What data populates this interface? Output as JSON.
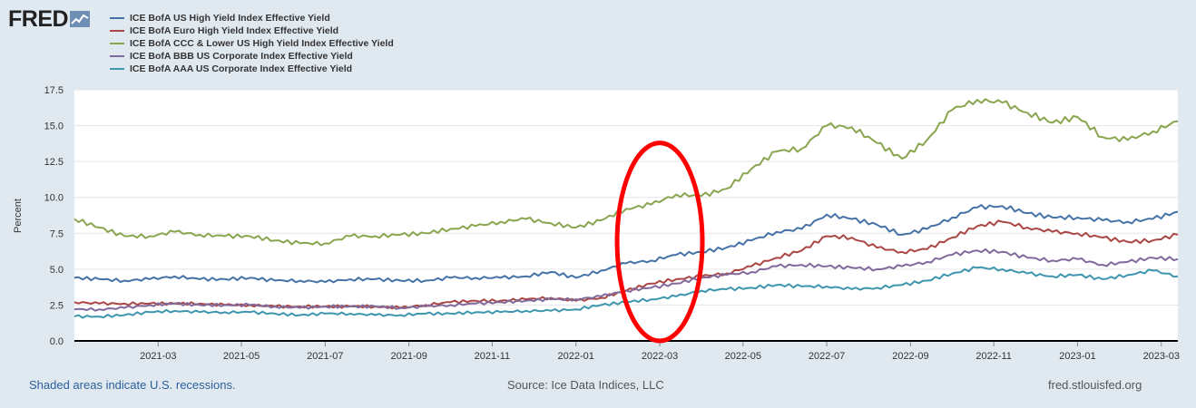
{
  "logo": {
    "text": "FRED",
    "icon": "fred-graph-icon"
  },
  "footer": {
    "recession_note": "Shaded areas indicate U.S. recessions.",
    "source": "Source: Ice Data Indices, LLC",
    "site": "fred.stlouisfed.org"
  },
  "colors": {
    "background": "#e1e9f0",
    "plot_background": "#ffffff",
    "annotation": "#ff0000"
  },
  "chart_data": {
    "type": "line",
    "title": "",
    "xlabel": "",
    "ylabel": "Percent",
    "ylim": [
      0,
      17.5
    ],
    "yticks": [
      "0.0",
      "2.5",
      "5.0",
      "7.5",
      "10.0",
      "12.5",
      "15.0",
      "17.5"
    ],
    "xlim": [
      2021.0,
      2023.2
    ],
    "xticks": [
      {
        "t": 2021.167,
        "label": "2021-03"
      },
      {
        "t": 2021.333,
        "label": "2021-05"
      },
      {
        "t": 2021.5,
        "label": "2021-07"
      },
      {
        "t": 2021.667,
        "label": "2021-09"
      },
      {
        "t": 2021.833,
        "label": "2021-11"
      },
      {
        "t": 2022.0,
        "label": "2022-01"
      },
      {
        "t": 2022.167,
        "label": "2022-03"
      },
      {
        "t": 2022.333,
        "label": "2022-05"
      },
      {
        "t": 2022.5,
        "label": "2022-07"
      },
      {
        "t": 2022.667,
        "label": "2022-09"
      },
      {
        "t": 2022.833,
        "label": "2022-11"
      },
      {
        "t": 2023.0,
        "label": "2023-01"
      },
      {
        "t": 2023.167,
        "label": "2023-03"
      }
    ],
    "grid": true,
    "legend_position": "top",
    "annotation": {
      "type": "ellipse",
      "x_center": 2022.167,
      "y_center": 6.9,
      "x_radius": 0.085,
      "y_radius": 6.9
    },
    "series": [
      {
        "name": "ICE BofA US High Yield Index Effective Yield",
        "color": "#4572a7",
        "x": [
          2021.0,
          2021.05,
          2021.1,
          2021.15,
          2021.2,
          2021.25,
          2021.3,
          2021.35,
          2021.4,
          2021.45,
          2021.5,
          2021.55,
          2021.6,
          2021.65,
          2021.7,
          2021.75,
          2021.8,
          2021.85,
          2021.9,
          2021.95,
          2022.0,
          2022.05,
          2022.1,
          2022.15,
          2022.2,
          2022.25,
          2022.3,
          2022.35,
          2022.4,
          2022.45,
          2022.5,
          2022.55,
          2022.6,
          2022.65,
          2022.7,
          2022.75,
          2022.8,
          2022.85,
          2022.9,
          2022.95,
          2023.0,
          2023.05,
          2023.1,
          2023.15,
          2023.2
        ],
        "values": [
          4.4,
          4.3,
          4.2,
          4.3,
          4.5,
          4.3,
          4.3,
          4.4,
          4.2,
          4.2,
          4.1,
          4.3,
          4.3,
          4.2,
          4.2,
          4.4,
          4.4,
          4.4,
          4.5,
          4.8,
          4.4,
          4.9,
          5.4,
          5.6,
          6.0,
          6.2,
          6.5,
          7.0,
          7.6,
          7.8,
          8.8,
          8.5,
          8.1,
          7.4,
          7.8,
          8.6,
          9.3,
          9.4,
          8.9,
          8.6,
          8.6,
          8.4,
          8.3,
          8.5,
          9.0
        ]
      },
      {
        "name": "ICE BofA Euro High Yield Index Effective Yield",
        "color": "#aa4643",
        "x": [
          2021.0,
          2021.05,
          2021.1,
          2021.15,
          2021.2,
          2021.25,
          2021.3,
          2021.35,
          2021.4,
          2021.45,
          2021.5,
          2021.55,
          2021.6,
          2021.65,
          2021.7,
          2021.75,
          2021.8,
          2021.85,
          2021.9,
          2021.95,
          2022.0,
          2022.05,
          2022.1,
          2022.15,
          2022.2,
          2022.25,
          2022.3,
          2022.35,
          2022.4,
          2022.45,
          2022.5,
          2022.55,
          2022.6,
          2022.65,
          2022.7,
          2022.75,
          2022.8,
          2022.85,
          2022.9,
          2022.95,
          2023.0,
          2023.05,
          2023.1,
          2023.15,
          2023.2
        ],
        "values": [
          2.7,
          2.6,
          2.6,
          2.6,
          2.6,
          2.6,
          2.5,
          2.5,
          2.4,
          2.4,
          2.4,
          2.4,
          2.4,
          2.3,
          2.5,
          2.7,
          2.8,
          2.8,
          2.9,
          3.0,
          2.8,
          3.0,
          3.5,
          4.0,
          4.3,
          4.5,
          4.7,
          5.2,
          5.8,
          6.3,
          7.3,
          7.2,
          6.5,
          6.2,
          6.4,
          7.2,
          8.0,
          8.3,
          7.9,
          7.6,
          7.5,
          7.2,
          6.9,
          7.0,
          7.4
        ]
      },
      {
        "name": "ICE BofA CCC & Lower US High Yield Index Effective Yield",
        "color": "#89a54e",
        "x": [
          2021.0,
          2021.05,
          2021.1,
          2021.15,
          2021.2,
          2021.25,
          2021.3,
          2021.35,
          2021.4,
          2021.45,
          2021.5,
          2021.55,
          2021.6,
          2021.65,
          2021.7,
          2021.75,
          2021.8,
          2021.85,
          2021.9,
          2021.95,
          2022.0,
          2022.05,
          2022.1,
          2022.15,
          2022.2,
          2022.25,
          2022.3,
          2022.35,
          2022.4,
          2022.45,
          2022.5,
          2022.55,
          2022.6,
          2022.65,
          2022.7,
          2022.75,
          2022.8,
          2022.85,
          2022.9,
          2022.95,
          2023.0,
          2023.05,
          2023.1,
          2023.15,
          2023.2
        ],
        "values": [
          8.5,
          7.9,
          7.3,
          7.3,
          7.6,
          7.4,
          7.3,
          7.3,
          7.0,
          6.8,
          6.8,
          7.3,
          7.3,
          7.4,
          7.5,
          7.8,
          8.0,
          8.3,
          8.5,
          8.2,
          7.9,
          8.4,
          9.2,
          9.5,
          10.2,
          10.1,
          10.6,
          12.0,
          13.2,
          13.4,
          15.0,
          14.9,
          13.8,
          12.7,
          14.0,
          16.1,
          16.8,
          16.6,
          15.9,
          15.2,
          15.6,
          14.2,
          14.0,
          14.6,
          15.3
        ]
      },
      {
        "name": "ICE BofA BBB US Corporate Index Effective Yield",
        "color": "#80699b",
        "x": [
          2021.0,
          2021.05,
          2021.1,
          2021.15,
          2021.2,
          2021.25,
          2021.3,
          2021.35,
          2021.4,
          2021.45,
          2021.5,
          2021.55,
          2021.6,
          2021.65,
          2021.7,
          2021.75,
          2021.8,
          2021.85,
          2021.9,
          2021.95,
          2022.0,
          2022.05,
          2022.1,
          2022.15,
          2022.2,
          2022.25,
          2022.3,
          2022.35,
          2022.4,
          2022.45,
          2022.5,
          2022.55,
          2022.6,
          2022.65,
          2022.7,
          2022.75,
          2022.8,
          2022.85,
          2022.9,
          2022.95,
          2023.0,
          2023.05,
          2023.1,
          2023.15,
          2023.2
        ],
        "values": [
          2.2,
          2.2,
          2.3,
          2.5,
          2.6,
          2.5,
          2.5,
          2.5,
          2.4,
          2.3,
          2.4,
          2.4,
          2.4,
          2.3,
          2.4,
          2.5,
          2.6,
          2.7,
          2.8,
          2.9,
          2.9,
          3.1,
          3.5,
          3.7,
          4.0,
          4.4,
          4.6,
          4.8,
          5.2,
          5.3,
          5.2,
          5.1,
          5.0,
          5.2,
          5.5,
          6.0,
          6.3,
          6.2,
          5.8,
          5.6,
          5.7,
          5.3,
          5.5,
          5.8,
          5.7
        ]
      },
      {
        "name": "ICE BofA AAA US Corporate Index Effective Yield",
        "color": "#3d96ae",
        "x": [
          2021.0,
          2021.05,
          2021.1,
          2021.15,
          2021.2,
          2021.25,
          2021.3,
          2021.35,
          2021.4,
          2021.45,
          2021.5,
          2021.55,
          2021.6,
          2021.65,
          2021.7,
          2021.75,
          2021.8,
          2021.85,
          2021.9,
          2021.95,
          2022.0,
          2022.05,
          2022.1,
          2022.15,
          2022.2,
          2022.25,
          2022.3,
          2022.35,
          2022.4,
          2022.45,
          2022.5,
          2022.55,
          2022.6,
          2022.65,
          2022.7,
          2022.75,
          2022.8,
          2022.85,
          2022.9,
          2022.95,
          2023.0,
          2023.05,
          2023.1,
          2023.15,
          2023.2
        ],
        "values": [
          1.7,
          1.7,
          1.8,
          2.0,
          2.1,
          2.0,
          2.0,
          2.0,
          1.9,
          1.8,
          1.9,
          1.9,
          1.8,
          1.8,
          1.9,
          1.9,
          2.0,
          2.0,
          2.1,
          2.1,
          2.2,
          2.5,
          2.7,
          2.9,
          3.1,
          3.5,
          3.6,
          3.7,
          3.9,
          3.8,
          3.8,
          3.6,
          3.7,
          3.9,
          4.2,
          4.7,
          5.1,
          5.0,
          4.7,
          4.5,
          4.6,
          4.3,
          4.6,
          4.9,
          4.5
        ]
      }
    ]
  }
}
